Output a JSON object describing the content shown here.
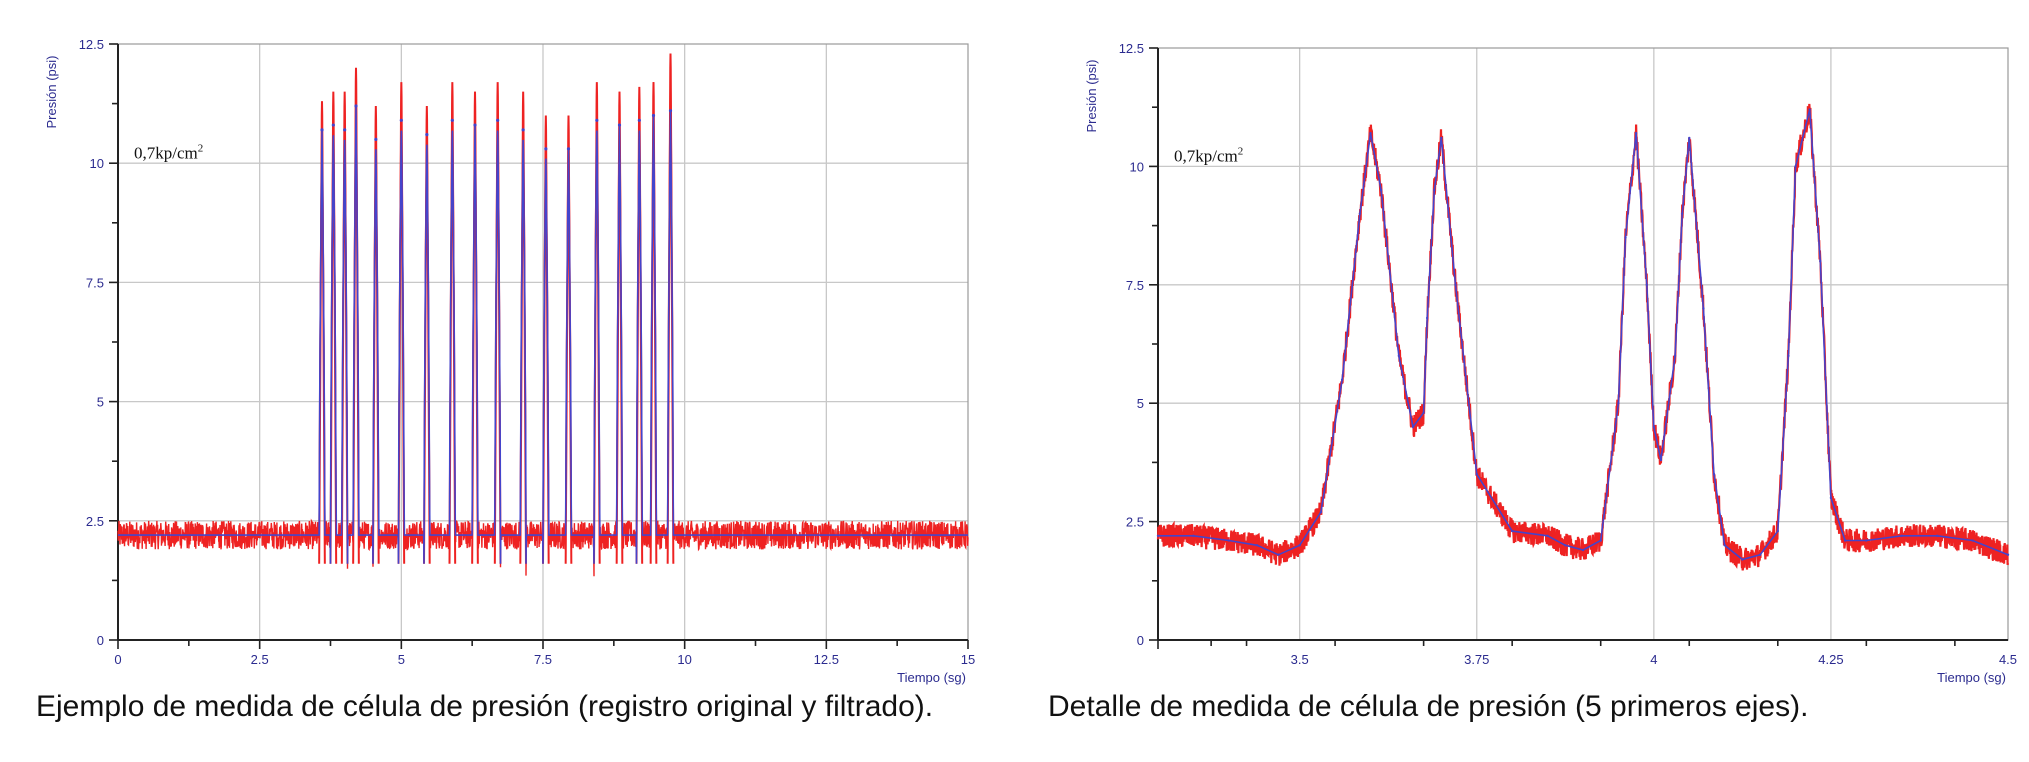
{
  "colors": {
    "raw": "#ee2222",
    "filtered": "#4444cc",
    "axis": "#2b2b8f",
    "grid": "#c8c8c8"
  },
  "chart_data": [
    {
      "type": "line",
      "xlabel": "Tiempo (sg)",
      "ylabel": "Presión (psi)",
      "xlim": [
        0,
        15
      ],
      "ylim": [
        0,
        12.5
      ],
      "xticks": [
        0,
        2.5,
        5,
        7.5,
        10,
        12.5,
        15
      ],
      "xtick_labels": [
        "0",
        "2.5",
        "5",
        "7.5",
        "10",
        "12.5",
        "15"
      ],
      "yticks": [
        0,
        2.5,
        5,
        7.5,
        10,
        12.5
      ],
      "ytick_labels": [
        "0",
        "2.5",
        "5",
        "7.5",
        "10",
        "12.5"
      ],
      "grid": true,
      "annotation": {
        "text": "0,7kp/cm",
        "superscript": "2"
      },
      "caption": "Ejemplo de medida de célula de presión (registro original y filtrado).",
      "baseline": 2.2,
      "noise_amplitude": 0.3,
      "peaks": [
        {
          "x": 3.6,
          "peak_raw": 11.3,
          "peak_filtered": 10.7
        },
        {
          "x": 3.8,
          "peak_raw": 11.5,
          "peak_filtered": 10.8
        },
        {
          "x": 4.0,
          "peak_raw": 11.5,
          "peak_filtered": 10.7
        },
        {
          "x": 4.2,
          "peak_raw": 12.0,
          "peak_filtered": 11.2
        },
        {
          "x": 4.55,
          "peak_raw": 11.2,
          "peak_filtered": 10.5
        },
        {
          "x": 5.0,
          "peak_raw": 11.7,
          "peak_filtered": 10.9
        },
        {
          "x": 5.45,
          "peak_raw": 11.2,
          "peak_filtered": 10.6
        },
        {
          "x": 5.9,
          "peak_raw": 11.7,
          "peak_filtered": 10.9
        },
        {
          "x": 6.3,
          "peak_raw": 11.5,
          "peak_filtered": 10.8
        },
        {
          "x": 6.7,
          "peak_raw": 11.7,
          "peak_filtered": 10.9
        },
        {
          "x": 7.15,
          "peak_raw": 11.5,
          "peak_filtered": 10.7
        },
        {
          "x": 7.55,
          "peak_raw": 11.0,
          "peak_filtered": 10.3
        },
        {
          "x": 7.95,
          "peak_raw": 11.0,
          "peak_filtered": 10.3
        },
        {
          "x": 8.45,
          "peak_raw": 11.7,
          "peak_filtered": 10.9
        },
        {
          "x": 8.85,
          "peak_raw": 11.5,
          "peak_filtered": 10.8
        },
        {
          "x": 9.2,
          "peak_raw": 11.6,
          "peak_filtered": 10.9
        },
        {
          "x": 9.45,
          "peak_raw": 11.7,
          "peak_filtered": 11.0
        },
        {
          "x": 9.75,
          "peak_raw": 12.3,
          "peak_filtered": 11.1
        }
      ],
      "peak_half_width": 0.05,
      "trough": 1.6
    },
    {
      "type": "line",
      "xlabel": "Tiempo (sg)",
      "ylabel": "Presión (psi)",
      "xlim": [
        3.3,
        4.5
      ],
      "ylim": [
        0,
        12.5
      ],
      "xticks": [
        3.5,
        3.75,
        4,
        4.25,
        4.5
      ],
      "xtick_labels": [
        "3.5",
        "3.75",
        "4",
        "4.25",
        "4.5"
      ],
      "yticks": [
        0,
        2.5,
        5,
        7.5,
        10,
        12.5
      ],
      "ytick_labels": [
        "0",
        "2.5",
        "5",
        "7.5",
        "10",
        "12.5"
      ],
      "grid": true,
      "annotation": {
        "text": "0,7kp/cm",
        "superscript": "2"
      },
      "caption": "Detalle de medida de célula de presión (5 primeros ejes).",
      "series": [
        {
          "name": "",
          "role": "filtered",
          "x": [
            3.3,
            3.35,
            3.4,
            3.44,
            3.47,
            3.5,
            3.53,
            3.56,
            3.585,
            3.6,
            3.615,
            3.64,
            3.66,
            3.675,
            3.68,
            3.69,
            3.7,
            3.72,
            3.75,
            3.8,
            3.85,
            3.875,
            3.9,
            3.925,
            3.95,
            3.96,
            3.975,
            3.99,
            4.0,
            4.01,
            4.03,
            4.04,
            4.05,
            4.07,
            4.085,
            4.1,
            4.125,
            4.15,
            4.175,
            4.19,
            4.2,
            4.22,
            4.235,
            4.25,
            4.27,
            4.3,
            4.35,
            4.4,
            4.45,
            4.5
          ],
          "y": [
            2.2,
            2.2,
            2.1,
            2.0,
            1.8,
            2.0,
            2.7,
            5.5,
            9.0,
            10.7,
            9.5,
            6.0,
            4.5,
            4.8,
            6.8,
            9.5,
            10.6,
            7.5,
            3.5,
            2.3,
            2.2,
            2.0,
            1.9,
            2.1,
            5.0,
            8.5,
            10.7,
            7.5,
            4.5,
            3.8,
            6.0,
            9.0,
            10.6,
            7.0,
            3.5,
            2.0,
            1.7,
            1.8,
            2.3,
            6.0,
            10.0,
            11.2,
            8.0,
            3.0,
            2.1,
            2.1,
            2.2,
            2.2,
            2.1,
            1.8
          ]
        }
      ],
      "raw_noise_amplitude": 0.25
    }
  ]
}
